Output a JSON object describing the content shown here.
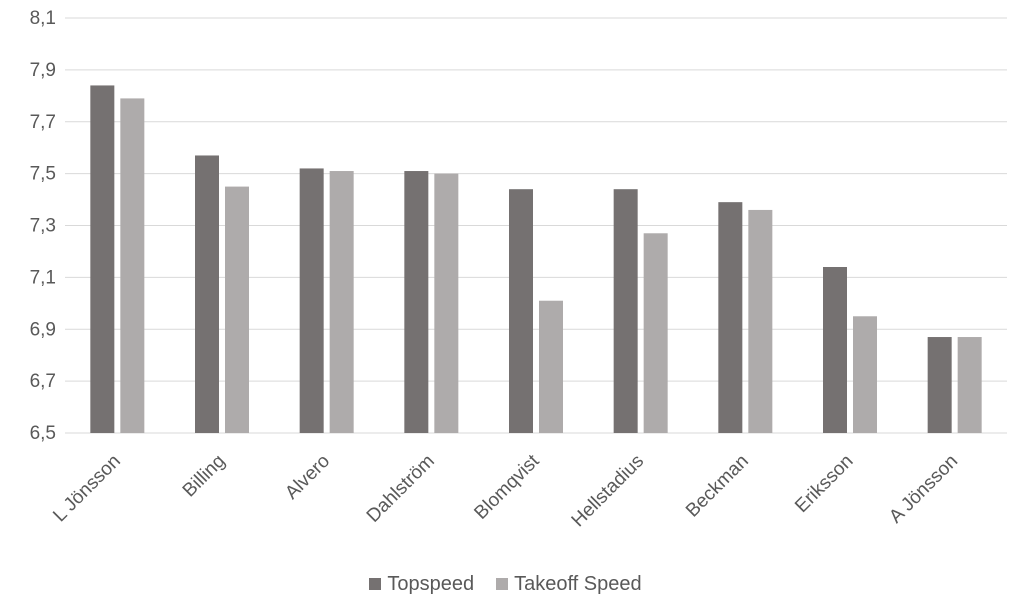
{
  "chart_data": {
    "type": "bar",
    "categories": [
      "L Jönsson",
      "Billing",
      "Alvero",
      "Dahlström",
      "Blomqvist",
      "Hellstadius",
      "Beckman",
      "Eriksson",
      "A Jönsson"
    ],
    "series": [
      {
        "name": "Topspeed",
        "color": "#757171",
        "values": [
          7.84,
          7.57,
          7.52,
          7.51,
          7.44,
          7.44,
          7.39,
          7.14,
          6.87
        ]
      },
      {
        "name": "Takeoff Speed",
        "color": "#aeabab",
        "values": [
          7.79,
          7.45,
          7.51,
          7.5,
          7.01,
          7.27,
          7.36,
          6.95,
          6.87
        ]
      }
    ],
    "ylim": [
      6.5,
      8.1
    ],
    "yticks": [
      6.5,
      6.7,
      6.9,
      7.1,
      7.3,
      7.5,
      7.7,
      7.9,
      8.1
    ],
    "ytick_labels": [
      "6,5",
      "6,7",
      "6,9",
      "7,1",
      "7,3",
      "7,5",
      "7,7",
      "7,9",
      "8,1"
    ],
    "title": "",
    "xlabel": "",
    "ylabel": "",
    "grid": true,
    "legend_position": "bottom",
    "gridline_color": "#d9d9d9",
    "label_color": "#595959"
  }
}
